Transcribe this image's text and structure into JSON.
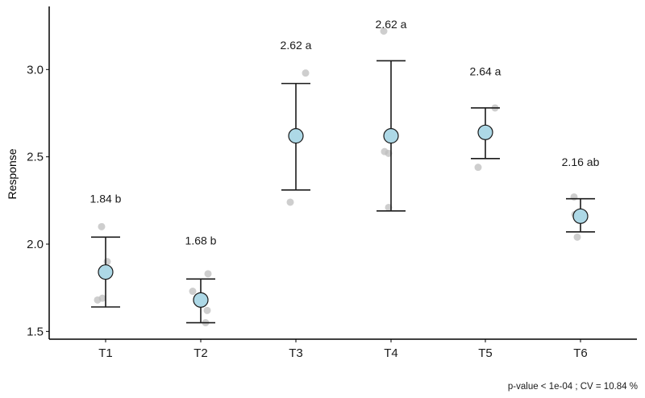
{
  "chart_data": {
    "type": "scatter",
    "subtype": "mean-errorbar-with-jitter",
    "title": "",
    "xlabel": "",
    "ylabel": "Response",
    "ylim": [
      1.47,
      3.35
    ],
    "yticks": [
      1.5,
      2.0,
      2.5,
      3.0
    ],
    "ytick_labels": [
      "1.5",
      "2.0",
      "2.5",
      "3.0"
    ],
    "categories": [
      "T1",
      "T2",
      "T3",
      "T4",
      "T5",
      "T6"
    ],
    "grid": false,
    "legend": null,
    "series": [
      {
        "name": "mean",
        "values": [
          1.84,
          1.68,
          2.62,
          2.62,
          2.64,
          2.16
        ],
        "marker_color": "#add8e6"
      },
      {
        "name": "error_upper",
        "values": [
          2.04,
          1.8,
          2.92,
          3.05,
          2.78,
          2.26
        ]
      },
      {
        "name": "error_lower",
        "values": [
          1.64,
          1.55,
          2.31,
          2.19,
          2.49,
          2.07
        ]
      }
    ],
    "annotations": [
      "1.84 b",
      "1.68 b",
      "2.62 a",
      "2.62 a",
      "2.64 a",
      "2.16 ab"
    ],
    "annotation_y": [
      2.26,
      2.02,
      3.14,
      3.26,
      2.99,
      2.47
    ],
    "raw_points": [
      [
        {
          "dx": -5,
          "v": 2.1
        },
        {
          "dx": 2,
          "v": 1.9
        },
        {
          "dx": -10,
          "v": 1.68
        },
        {
          "dx": -4,
          "v": 1.69
        }
      ],
      [
        {
          "dx": 9,
          "v": 1.83
        },
        {
          "dx": -10,
          "v": 1.73
        },
        {
          "dx": 8,
          "v": 1.62
        },
        {
          "dx": 6,
          "v": 1.55
        }
      ],
      [
        {
          "dx": 12,
          "v": 2.98
        },
        {
          "dx": -7,
          "v": 2.24
        },
        {
          "dx": -5,
          "v": 2.62
        }
      ],
      [
        {
          "dx": -9,
          "v": 3.22
        },
        {
          "dx": -8,
          "v": 2.53
        },
        {
          "dx": -3,
          "v": 2.52
        },
        {
          "dx": -3,
          "v": 2.21
        }
      ],
      [
        {
          "dx": 12,
          "v": 2.78
        },
        {
          "dx": 5,
          "v": 2.65
        },
        {
          "dx": -9,
          "v": 2.44
        }
      ],
      [
        {
          "dx": -8,
          "v": 2.27
        },
        {
          "dx": -7,
          "v": 2.17
        },
        {
          "dx": -4,
          "v": 2.04
        }
      ]
    ],
    "caption": "p-value < 1e-04 ; CV =  10.84 %"
  },
  "colors": {
    "mean_fill": "#add8e6",
    "mean_stroke": "#1a1a1a",
    "raw_point": "#bdbdbd",
    "errorbar": "#1a1a1a",
    "axis": "#000000"
  }
}
